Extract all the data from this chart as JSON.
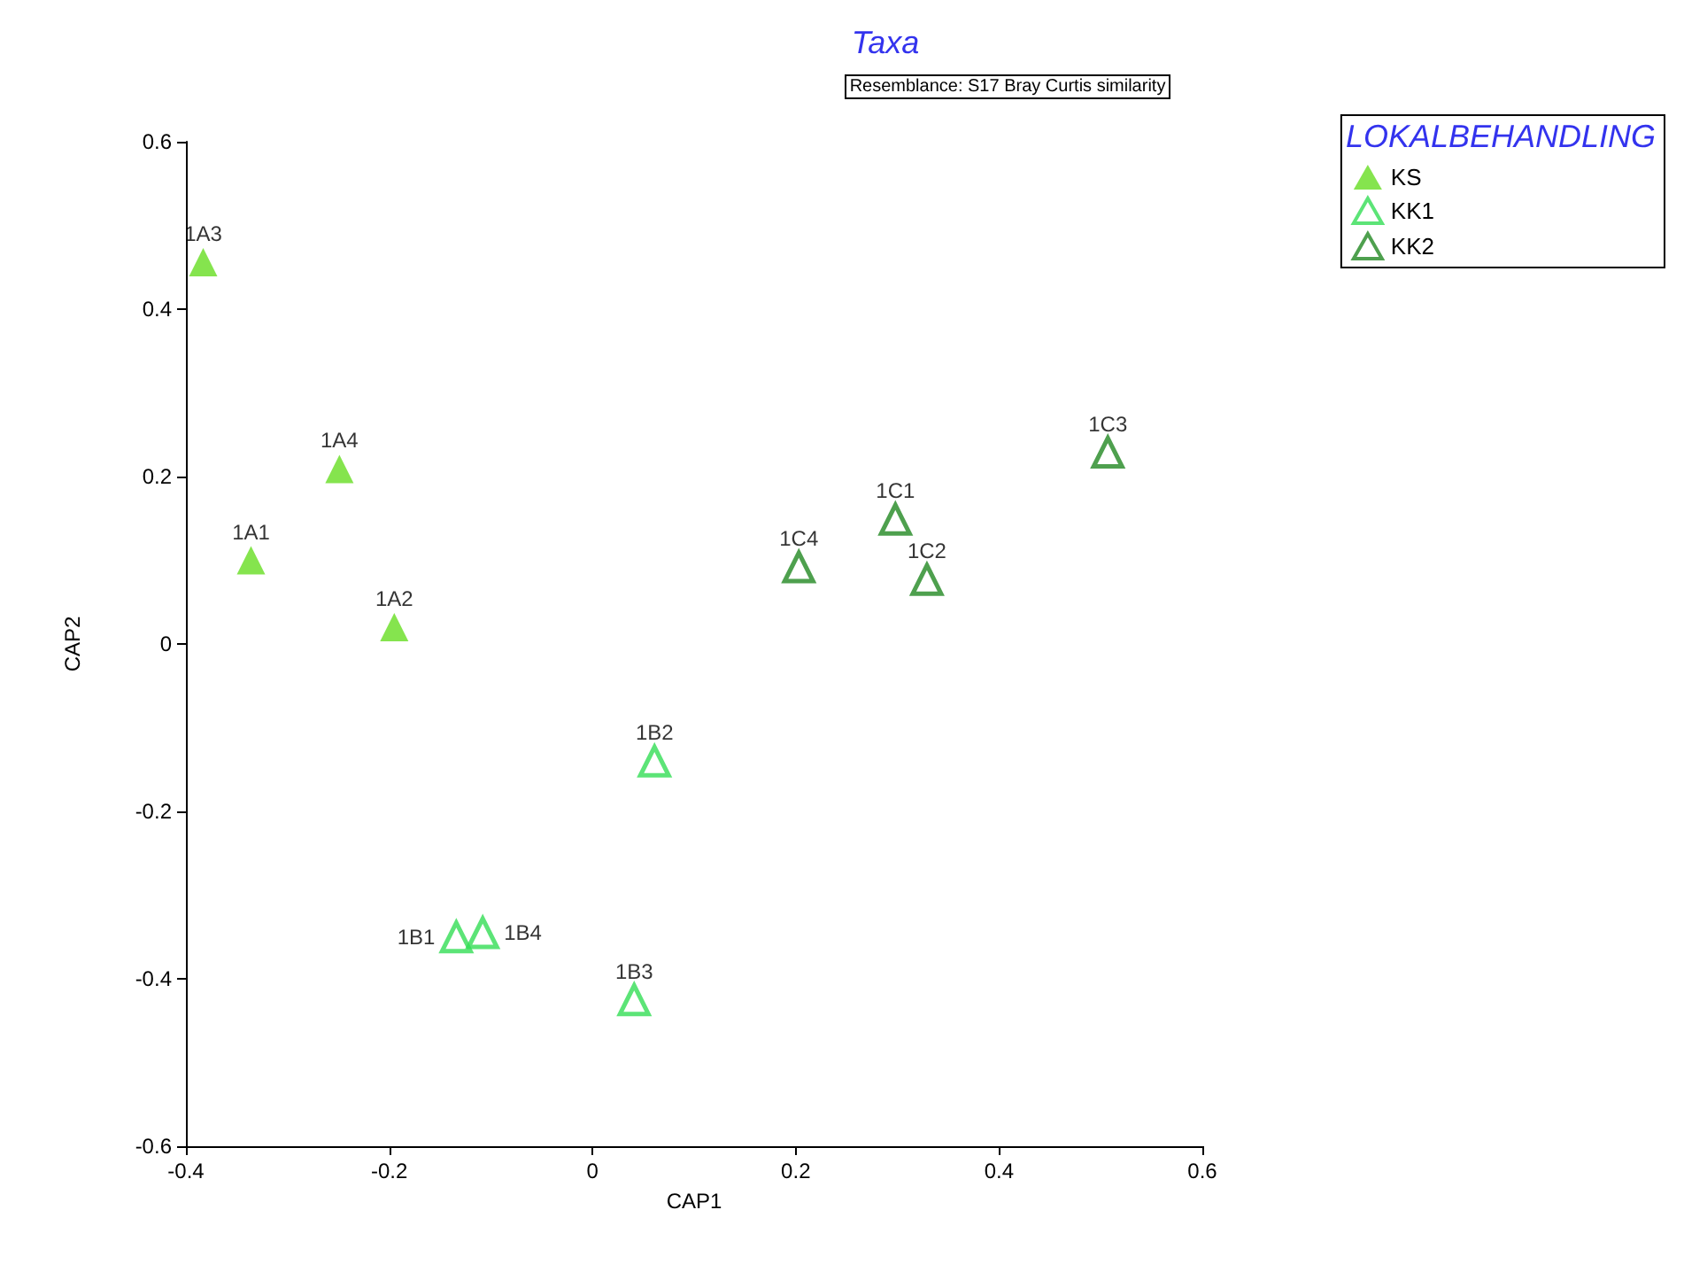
{
  "chart_data": {
    "type": "scatter",
    "title": "Taxa",
    "subtitle": "Resemblance: S17 Bray Curtis similarity",
    "xlabel": "CAP1",
    "ylabel": "CAP2",
    "legend_title": "LOKALBEHANDLING",
    "legend": "top right",
    "grid": false,
    "xlim": [
      -0.4,
      0.6
    ],
    "ylim": [
      -0.6,
      0.6
    ],
    "xticks": [
      -0.4,
      -0.2,
      0,
      0.2,
      0.4,
      0.6
    ],
    "yticks": [
      -0.6,
      -0.4,
      -0.2,
      0,
      0.2,
      0.4,
      0.6
    ],
    "series": [
      {
        "name": "KS",
        "color": "#66dd22",
        "marker": "triangle",
        "x": [
          -0.383,
          -0.249,
          -0.336,
          -0.195
        ],
        "values": [
          0.456,
          0.209,
          0.1,
          0.02
        ]
      },
      {
        "name": "KK1",
        "color": "#33dd55",
        "marker": "triangle-open",
        "x": [
          0.061,
          -0.134,
          -0.108,
          0.041
        ],
        "values": [
          -0.14,
          -0.35,
          -0.345,
          -0.425
        ]
      },
      {
        "name": "KK2",
        "color": "#228822",
        "marker": "triangle-open",
        "x": [
          0.203,
          0.298,
          0.329,
          0.507
        ],
        "values": [
          0.092,
          0.149,
          0.077,
          0.229
        ]
      }
    ],
    "annotations": [
      {
        "text": "1A3",
        "x": -0.383,
        "y": 0.456
      },
      {
        "text": "1A4",
        "x": -0.249,
        "y": 0.209
      },
      {
        "text": "1A1",
        "x": -0.336,
        "y": 0.1
      },
      {
        "text": "1A2",
        "x": -0.195,
        "y": 0.02
      },
      {
        "text": "1B2",
        "x": 0.061,
        "y": -0.14
      },
      {
        "text": "1B1",
        "x": -0.134,
        "y": -0.35
      },
      {
        "text": "1B4",
        "x": -0.108,
        "y": -0.345
      },
      {
        "text": "1B3",
        "x": 0.041,
        "y": -0.425
      },
      {
        "text": "1C4",
        "x": 0.203,
        "y": 0.092
      },
      {
        "text": "1C1",
        "x": 0.298,
        "y": 0.149
      },
      {
        "text": "1C2",
        "x": 0.329,
        "y": 0.077
      },
      {
        "text": "1C3",
        "x": 0.507,
        "y": 0.229
      }
    ]
  }
}
